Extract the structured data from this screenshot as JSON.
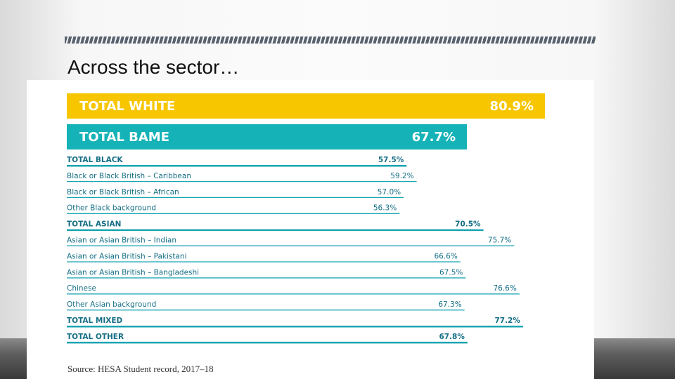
{
  "slide": {
    "title": "Across the sector…",
    "source": "Source: HESA Student record, 2017–18"
  },
  "colors": {
    "white_bar": "#f7c600",
    "bame_bar": "#15b3b7",
    "line": "#1aa5b0",
    "label": "#156f86"
  },
  "chart_data": {
    "type": "bar",
    "orientation": "horizontal",
    "unit": "%",
    "xlim": [
      0,
      80.9
    ],
    "headline": [
      {
        "label": "TOTAL WHITE",
        "value": 80.9,
        "display": "80.9%",
        "color": "#f7c600"
      },
      {
        "label": "TOTAL BAME",
        "value": 67.7,
        "display": "67.7%",
        "color": "#15b3b7"
      }
    ],
    "rows": [
      {
        "label": "TOTAL BLACK",
        "value": 57.5,
        "display": "57.5%",
        "total": true
      },
      {
        "label": "Black or Black British – Caribbean",
        "value": 59.2,
        "display": "59.2%",
        "total": false
      },
      {
        "label": "Black or Black British – African",
        "value": 57.0,
        "display": "57.0%",
        "total": false
      },
      {
        "label": "Other Black background",
        "value": 56.3,
        "display": "56.3%",
        "total": false
      },
      {
        "label": "TOTAL ASIAN",
        "value": 70.5,
        "display": "70.5%",
        "total": true
      },
      {
        "label": "Asian or Asian British – Indian",
        "value": 75.7,
        "display": "75.7%",
        "total": false
      },
      {
        "label": "Asian or Asian British – Pakistani",
        "value": 66.6,
        "display": "66.6%",
        "total": false
      },
      {
        "label": "Asian or Asian British – Bangladeshi",
        "value": 67.5,
        "display": "67.5%",
        "total": false
      },
      {
        "label": "Chinese",
        "value": 76.6,
        "display": "76.6%",
        "total": false
      },
      {
        "label": "Other Asian background",
        "value": 67.3,
        "display": "67.3%",
        "total": false
      },
      {
        "label": "TOTAL MIXED",
        "value": 77.2,
        "display": "77.2%",
        "total": true
      },
      {
        "label": "TOTAL OTHER",
        "value": 67.8,
        "display": "67.8%",
        "total": true
      }
    ]
  }
}
